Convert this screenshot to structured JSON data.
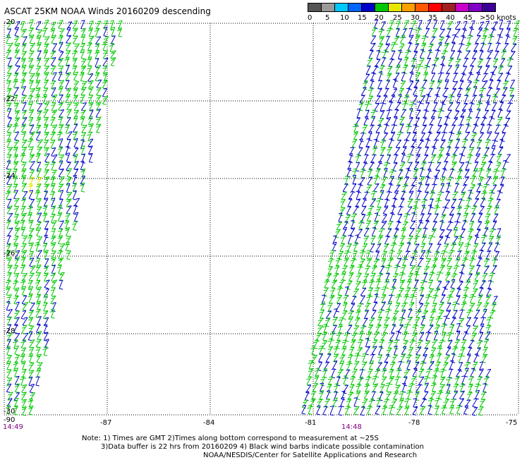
{
  "title": "ASCAT 25KM NOAA Winds 20160209 descending",
  "legend": {
    "labels": [
      "0",
      "5",
      "10",
      "15",
      "20",
      "25",
      "30",
      "35",
      "40",
      "45",
      ">50 knots"
    ],
    "colors": [
      "#555555",
      "#9a9a9a",
      "#00c8ff",
      "#0064ff",
      "#0000c8",
      "#00c800",
      "#e6e600",
      "#ffa000",
      "#ff5a00",
      "#ff0000",
      "#a02020",
      "#c800c8",
      "#8000c8",
      "#3c0096"
    ]
  },
  "axes": {
    "y_labels": [
      "-20",
      "-22",
      "-24",
      "-26",
      "-28",
      "-30"
    ],
    "x_labels": [
      "-90",
      "-87",
      "-84",
      "-81",
      "-78",
      "-75"
    ]
  },
  "times": [
    "14:49",
    "14:48"
  ],
  "note": {
    "line1": "Note: 1) Times are GMT 2)Times along bottom correspond to measurement at ~25S",
    "line2": "3)Data buffer is 22 hrs from 20160209 4) Black wind barbs indicate possible contamination",
    "line3": "NOAA/NESDIS/Center for Satellite Applications and Research"
  },
  "barb_colors": {
    "blue": "#0000c8",
    "green": "#00c800",
    "yellow": "#e6e600"
  }
}
